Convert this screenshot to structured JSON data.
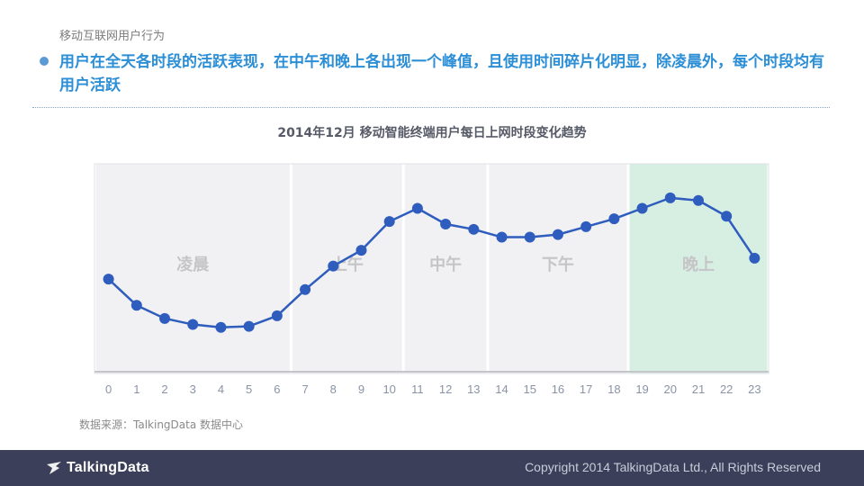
{
  "slide": {
    "subtitle": "移动互联网用户行为",
    "headline": "用户在全天各时段的活跃表现，在中午和晚上各出现一个峰值，且使用时间碎片化明显，除凌晨外，每个时段均有用户活跃",
    "source": "数据来源：TalkingData 数据中心"
  },
  "footer": {
    "logo_text": "TalkingData",
    "copyright": "Copyright 2014 TalkingData Ltd., All Rights Reserved",
    "background": "#3b3f5a"
  },
  "chart_data": {
    "type": "line",
    "title": "2014年12月 移动智能终端用户每日上网时段变化趋势",
    "xlabel": "",
    "ylabel": "",
    "x": [
      0,
      1,
      2,
      3,
      4,
      5,
      6,
      7,
      8,
      9,
      10,
      11,
      12,
      13,
      14,
      15,
      16,
      17,
      18,
      19,
      20,
      21,
      22,
      23
    ],
    "values": [
      3.6,
      2.6,
      2.1,
      1.87,
      1.76,
      1.8,
      2.2,
      3.2,
      4.1,
      4.7,
      5.8,
      6.3,
      5.7,
      5.5,
      5.2,
      5.2,
      5.3,
      5.6,
      5.9,
      6.3,
      6.7,
      6.6,
      6.0,
      4.4
    ],
    "ylim": [
      0,
      8
    ],
    "line_color": "#2f5dbe",
    "periods": [
      {
        "label": "凌晨",
        "from": -0.5,
        "to": 6.5,
        "fill": "#f1f1f3"
      },
      {
        "label": "上午",
        "from": 6.5,
        "to": 10.5,
        "fill": "#f1f1f3"
      },
      {
        "label": "中午",
        "from": 10.5,
        "to": 13.5,
        "fill": "#f1f1f3"
      },
      {
        "label": "下午",
        "from": 13.5,
        "to": 18.5,
        "fill": "#f1f1f3"
      },
      {
        "label": "晚上",
        "from": 18.5,
        "to": 23.5,
        "fill": "#d7eee3"
      }
    ]
  }
}
